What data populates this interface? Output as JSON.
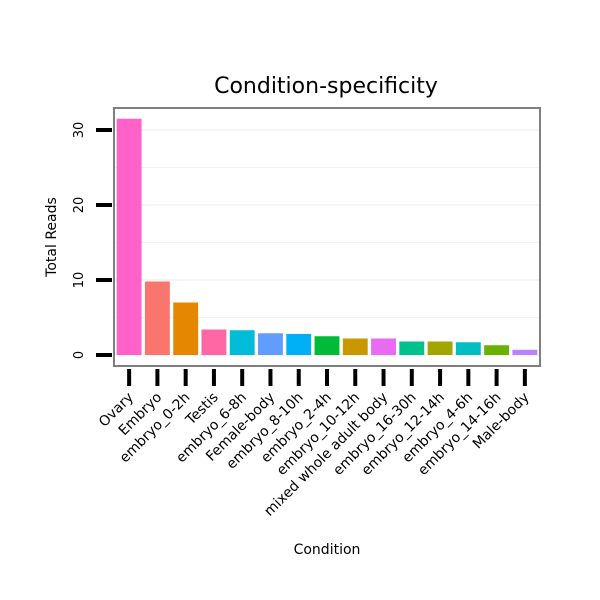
{
  "chart_data": {
    "type": "bar",
    "title": "Condition-specificity",
    "xlabel": "Condition",
    "ylabel": "Total Reads",
    "ylim": [
      0,
      32.5
    ],
    "yticks": [
      0,
      10,
      20,
      30
    ],
    "grid": true,
    "categories": [
      "Ovary",
      "Embryo",
      "embryo_0-2h",
      "Testis",
      "embryo_6-8h",
      "Female-body",
      "embryo_8-10h",
      "embryo_2-4h",
      "embryo_10-12h",
      "mixed whole adult body",
      "embryo_16-30h",
      "embryo_12-14h",
      "embryo_4-6h",
      "embryo_14-16h",
      "Male-body"
    ],
    "values": [
      31.5,
      9.8,
      7.0,
      3.4,
      3.3,
      2.9,
      2.8,
      2.5,
      2.2,
      2.2,
      1.8,
      1.8,
      1.7,
      1.3,
      0.7
    ],
    "colors": [
      "#FF61C9",
      "#F8766D",
      "#E58700",
      "#FF67A4",
      "#00BCD8",
      "#619CFF",
      "#00B0F6",
      "#00BA38",
      "#C99800",
      "#E76BF3",
      "#00C08B",
      "#A3A500",
      "#00BFC4",
      "#6BB100",
      "#B983FF"
    ]
  }
}
